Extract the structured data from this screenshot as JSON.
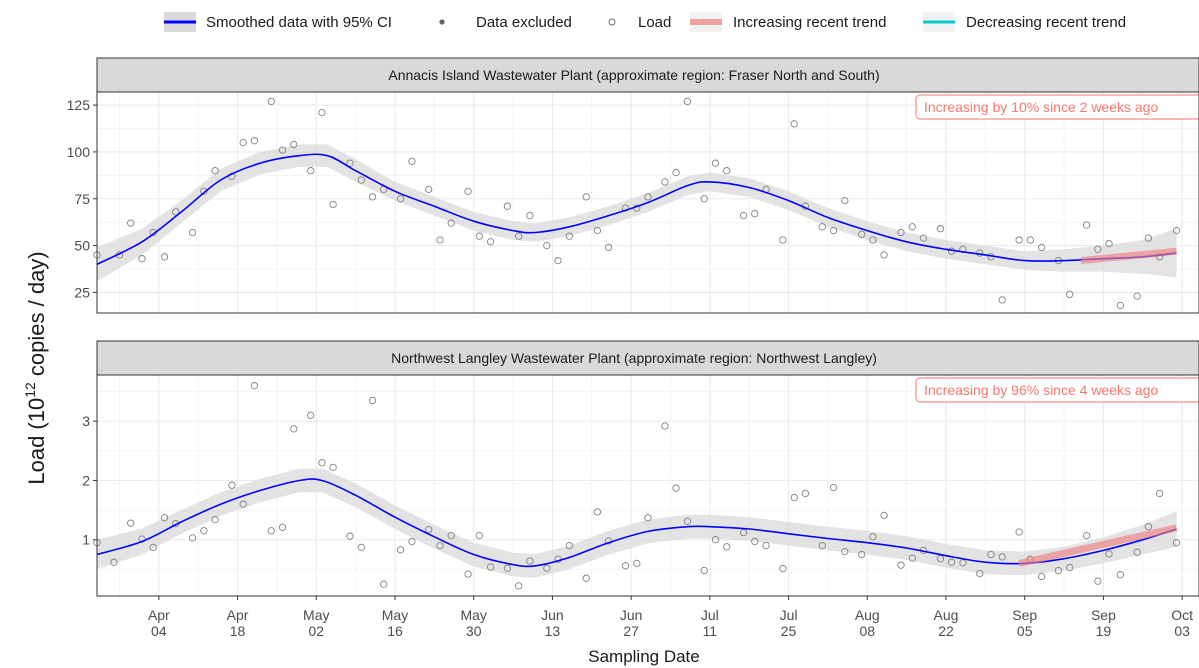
{
  "chart_data": {
    "type": "scatter",
    "x_axis_title": "Sampling Date",
    "y_axis_title_prefix": "Load (10",
    "y_axis_title_exponent": "12",
    "y_axis_title_suffix": " copies / day)",
    "legend": {
      "position": "top",
      "items": [
        {
          "key": "smooth",
          "label": "Smoothed data with 95% CI"
        },
        {
          "key": "excluded",
          "label": "Data excluded"
        },
        {
          "key": "load",
          "label": "Load"
        },
        {
          "key": "increasing",
          "label": "Increasing recent trend"
        },
        {
          "key": "decreasing",
          "label": "Decreasing recent trend"
        }
      ]
    },
    "x_ticks": [
      {
        "date": "2021-04-04",
        "month": "Apr",
        "day": "04"
      },
      {
        "date": "2021-04-18",
        "month": "Apr",
        "day": "18"
      },
      {
        "date": "2021-05-02",
        "month": "May",
        "day": "02"
      },
      {
        "date": "2021-05-16",
        "month": "May",
        "day": "16"
      },
      {
        "date": "2021-05-30",
        "month": "May",
        "day": "30"
      },
      {
        "date": "2021-06-13",
        "month": "Jun",
        "day": "13"
      },
      {
        "date": "2021-06-27",
        "month": "Jun",
        "day": "27"
      },
      {
        "date": "2021-07-11",
        "month": "Jul",
        "day": "11"
      },
      {
        "date": "2021-07-25",
        "month": "Jul",
        "day": "25"
      },
      {
        "date": "2021-08-08",
        "month": "Aug",
        "day": "08"
      },
      {
        "date": "2021-08-22",
        "month": "Aug",
        "day": "22"
      },
      {
        "date": "2021-09-05",
        "month": "Sep",
        "day": "05"
      },
      {
        "date": "2021-09-19",
        "month": "Sep",
        "day": "19"
      },
      {
        "date": "2021-10-03",
        "month": "Oct",
        "day": "03"
      }
    ],
    "x_range": [
      "2021-03-24",
      "2021-10-06"
    ],
    "colors": {
      "smooth": "#0000ff",
      "ci": "#d9d9d9",
      "increasing": "#f08080",
      "decreasing": "#00cccc",
      "annotation": "#f8766d",
      "points": "#808080",
      "strip_fill": "#d9d9d9"
    },
    "grid": true,
    "panels": [
      {
        "title": "Annacis Island Wastewater Plant (approximate region: Fraser North and South)",
        "annotation": "Increasing by 10% since 2 weeks ago",
        "ylim": [
          14,
          132
        ],
        "y_ticks": [
          25,
          50,
          75,
          100,
          125
        ],
        "points": [
          [
            "2021-03-24",
            45
          ],
          [
            "2021-03-28",
            45
          ],
          [
            "2021-03-30",
            62
          ],
          [
            "2021-04-01",
            43
          ],
          [
            "2021-04-03",
            57
          ],
          [
            "2021-04-05",
            44
          ],
          [
            "2021-04-07",
            68
          ],
          [
            "2021-04-10",
            57
          ],
          [
            "2021-04-12",
            79
          ],
          [
            "2021-04-14",
            90
          ],
          [
            "2021-04-17",
            87
          ],
          [
            "2021-04-19",
            105
          ],
          [
            "2021-04-21",
            106
          ],
          [
            "2021-04-24",
            127
          ],
          [
            "2021-04-26",
            101
          ],
          [
            "2021-04-28",
            104
          ],
          [
            "2021-05-01",
            90
          ],
          [
            "2021-05-03",
            121
          ],
          [
            "2021-05-05",
            72
          ],
          [
            "2021-05-08",
            94
          ],
          [
            "2021-05-10",
            85
          ],
          [
            "2021-05-12",
            76
          ],
          [
            "2021-05-14",
            80
          ],
          [
            "2021-05-17",
            75
          ],
          [
            "2021-05-19",
            95
          ],
          [
            "2021-05-22",
            80
          ],
          [
            "2021-05-24",
            53
          ],
          [
            "2021-05-26",
            62
          ],
          [
            "2021-05-29",
            79
          ],
          [
            "2021-05-31",
            55
          ],
          [
            "2021-06-02",
            52
          ],
          [
            "2021-06-05",
            71
          ],
          [
            "2021-06-07",
            55
          ],
          [
            "2021-06-09",
            66
          ],
          [
            "2021-06-12",
            50
          ],
          [
            "2021-06-14",
            42
          ],
          [
            "2021-06-16",
            55
          ],
          [
            "2021-06-19",
            76
          ],
          [
            "2021-06-21",
            58
          ],
          [
            "2021-06-23",
            49
          ],
          [
            "2021-06-26",
            70
          ],
          [
            "2021-06-28",
            70
          ],
          [
            "2021-06-30",
            76
          ],
          [
            "2021-07-03",
            84
          ],
          [
            "2021-07-05",
            89
          ],
          [
            "2021-07-07",
            127
          ],
          [
            "2021-07-10",
            75
          ],
          [
            "2021-07-12",
            94
          ],
          [
            "2021-07-14",
            90
          ],
          [
            "2021-07-17",
            66
          ],
          [
            "2021-07-19",
            67
          ],
          [
            "2021-07-21",
            80
          ],
          [
            "2021-07-24",
            53
          ],
          [
            "2021-07-26",
            115
          ],
          [
            "2021-07-28",
            71
          ],
          [
            "2021-07-31",
            60
          ],
          [
            "2021-08-02",
            58
          ],
          [
            "2021-08-04",
            74
          ],
          [
            "2021-08-07",
            56
          ],
          [
            "2021-08-09",
            53
          ],
          [
            "2021-08-11",
            45
          ],
          [
            "2021-08-14",
            57
          ],
          [
            "2021-08-16",
            60
          ],
          [
            "2021-08-18",
            54
          ],
          [
            "2021-08-21",
            59
          ],
          [
            "2021-08-23",
            47
          ],
          [
            "2021-08-25",
            48
          ],
          [
            "2021-08-28",
            46
          ],
          [
            "2021-08-30",
            44
          ],
          [
            "2021-09-01",
            21
          ],
          [
            "2021-09-04",
            53
          ],
          [
            "2021-09-06",
            53
          ],
          [
            "2021-09-08",
            49
          ],
          [
            "2021-09-11",
            42
          ],
          [
            "2021-09-13",
            24
          ],
          [
            "2021-09-16",
            61
          ],
          [
            "2021-09-18",
            48
          ],
          [
            "2021-09-20",
            51
          ],
          [
            "2021-09-22",
            18
          ],
          [
            "2021-09-25",
            23
          ],
          [
            "2021-09-27",
            54
          ],
          [
            "2021-09-29",
            44
          ],
          [
            "2021-10-02",
            58
          ]
        ],
        "smooth": [
          [
            "2021-03-24",
            40
          ],
          [
            "2021-04-01",
            52
          ],
          [
            "2021-04-08",
            68
          ],
          [
            "2021-04-15",
            85
          ],
          [
            "2021-04-22",
            94
          ],
          [
            "2021-04-29",
            98
          ],
          [
            "2021-05-04",
            98
          ],
          [
            "2021-05-09",
            90
          ],
          [
            "2021-05-16",
            79
          ],
          [
            "2021-05-23",
            71
          ],
          [
            "2021-05-30",
            63
          ],
          [
            "2021-06-06",
            58
          ],
          [
            "2021-06-10",
            57
          ],
          [
            "2021-06-16",
            60
          ],
          [
            "2021-06-23",
            66
          ],
          [
            "2021-06-30",
            73
          ],
          [
            "2021-07-07",
            82
          ],
          [
            "2021-07-11",
            84
          ],
          [
            "2021-07-18",
            81
          ],
          [
            "2021-07-25",
            74
          ],
          [
            "2021-08-01",
            65
          ],
          [
            "2021-08-08",
            58
          ],
          [
            "2021-08-15",
            52
          ],
          [
            "2021-08-22",
            48
          ],
          [
            "2021-08-29",
            45
          ],
          [
            "2021-09-05",
            42
          ],
          [
            "2021-09-12",
            42
          ],
          [
            "2021-09-19",
            43
          ],
          [
            "2021-09-26",
            44
          ],
          [
            "2021-10-02",
            46
          ]
        ],
        "ci_halfwidth": [
          9,
          7,
          6,
          6,
          6,
          6,
          6,
          6,
          5,
          5,
          5,
          5,
          5,
          5,
          5,
          5,
          5,
          5,
          5,
          5,
          5,
          5,
          5,
          5,
          5,
          5,
          6,
          7,
          9,
          13
        ],
        "trend": {
          "direction": "increasing",
          "start": [
            "2021-09-15",
            42
          ],
          "end": [
            "2021-10-02",
            47
          ]
        }
      },
      {
        "title": "Northwest Langley Wastewater Plant (approximate region: Northwest Langley)",
        "annotation": "Increasing by 96% since 4 weeks ago",
        "ylim": [
          0.05,
          3.78
        ],
        "y_ticks": [
          1,
          2,
          3
        ],
        "points": [
          [
            "2021-03-24",
            0.95
          ],
          [
            "2021-03-27",
            0.62
          ],
          [
            "2021-03-30",
            1.28
          ],
          [
            "2021-04-01",
            1.01
          ],
          [
            "2021-04-03",
            0.87
          ],
          [
            "2021-04-05",
            1.37
          ],
          [
            "2021-04-07",
            1.27
          ],
          [
            "2021-04-10",
            1.03
          ],
          [
            "2021-04-12",
            1.15
          ],
          [
            "2021-04-14",
            1.34
          ],
          [
            "2021-04-17",
            1.92
          ],
          [
            "2021-04-19",
            1.6
          ],
          [
            "2021-04-21",
            3.6
          ],
          [
            "2021-04-24",
            1.15
          ],
          [
            "2021-04-26",
            1.21
          ],
          [
            "2021-04-28",
            2.87
          ],
          [
            "2021-05-01",
            3.1
          ],
          [
            "2021-05-03",
            2.3
          ],
          [
            "2021-05-05",
            2.22
          ],
          [
            "2021-05-08",
            1.06
          ],
          [
            "2021-05-10",
            0.87
          ],
          [
            "2021-05-12",
            3.35
          ],
          [
            "2021-05-14",
            0.25
          ],
          [
            "2021-05-17",
            0.83
          ],
          [
            "2021-05-19",
            0.97
          ],
          [
            "2021-05-22",
            1.17
          ],
          [
            "2021-05-24",
            0.9
          ],
          [
            "2021-05-26",
            1.07
          ],
          [
            "2021-05-29",
            0.42
          ],
          [
            "2021-05-31",
            1.07
          ],
          [
            "2021-06-02",
            0.54
          ],
          [
            "2021-06-05",
            0.52
          ],
          [
            "2021-06-07",
            0.22
          ],
          [
            "2021-06-09",
            0.64
          ],
          [
            "2021-06-12",
            0.52
          ],
          [
            "2021-06-14",
            0.67
          ],
          [
            "2021-06-16",
            0.9
          ],
          [
            "2021-06-19",
            0.35
          ],
          [
            "2021-06-21",
            1.47
          ],
          [
            "2021-06-23",
            0.98
          ],
          [
            "2021-06-26",
            0.56
          ],
          [
            "2021-06-28",
            0.6
          ],
          [
            "2021-06-30",
            1.37
          ],
          [
            "2021-07-03",
            2.92
          ],
          [
            "2021-07-05",
            1.87
          ],
          [
            "2021-07-07",
            1.31
          ],
          [
            "2021-07-10",
            0.48
          ],
          [
            "2021-07-12",
            1.0
          ],
          [
            "2021-07-14",
            0.88
          ],
          [
            "2021-07-17",
            1.12
          ],
          [
            "2021-07-19",
            0.97
          ],
          [
            "2021-07-21",
            0.9
          ],
          [
            "2021-07-24",
            0.51
          ],
          [
            "2021-07-26",
            1.71
          ],
          [
            "2021-07-28",
            1.78
          ],
          [
            "2021-07-31",
            0.9
          ],
          [
            "2021-08-02",
            1.88
          ],
          [
            "2021-08-04",
            0.8
          ],
          [
            "2021-08-07",
            0.75
          ],
          [
            "2021-08-09",
            1.05
          ],
          [
            "2021-08-11",
            1.41
          ],
          [
            "2021-08-14",
            0.57
          ],
          [
            "2021-08-16",
            0.69
          ],
          [
            "2021-08-18",
            0.82
          ],
          [
            "2021-08-21",
            0.68
          ],
          [
            "2021-08-23",
            0.62
          ],
          [
            "2021-08-25",
            0.61
          ],
          [
            "2021-08-28",
            0.43
          ],
          [
            "2021-08-30",
            0.75
          ],
          [
            "2021-09-01",
            0.71
          ],
          [
            "2021-09-04",
            1.13
          ],
          [
            "2021-09-06",
            0.67
          ],
          [
            "2021-09-08",
            0.38
          ],
          [
            "2021-09-11",
            0.48
          ],
          [
            "2021-09-13",
            0.53
          ],
          [
            "2021-09-16",
            1.07
          ],
          [
            "2021-09-18",
            0.3
          ],
          [
            "2021-09-20",
            0.76
          ],
          [
            "2021-09-22",
            0.41
          ],
          [
            "2021-09-25",
            0.79
          ],
          [
            "2021-09-27",
            1.22
          ],
          [
            "2021-09-29",
            1.78
          ],
          [
            "2021-10-02",
            0.95
          ]
        ],
        "smooth": [
          [
            "2021-03-24",
            0.75
          ],
          [
            "2021-04-01",
            0.97
          ],
          [
            "2021-04-08",
            1.3
          ],
          [
            "2021-04-15",
            1.6
          ],
          [
            "2021-04-22",
            1.83
          ],
          [
            "2021-04-29",
            2.0
          ],
          [
            "2021-05-03",
            2.0
          ],
          [
            "2021-05-09",
            1.75
          ],
          [
            "2021-05-16",
            1.38
          ],
          [
            "2021-05-23",
            1.05
          ],
          [
            "2021-05-30",
            0.75
          ],
          [
            "2021-06-06",
            0.58
          ],
          [
            "2021-06-10",
            0.56
          ],
          [
            "2021-06-16",
            0.7
          ],
          [
            "2021-06-23",
            0.95
          ],
          [
            "2021-06-30",
            1.14
          ],
          [
            "2021-07-07",
            1.22
          ],
          [
            "2021-07-11",
            1.22
          ],
          [
            "2021-07-18",
            1.18
          ],
          [
            "2021-07-25",
            1.1
          ],
          [
            "2021-08-01",
            1.02
          ],
          [
            "2021-08-08",
            0.95
          ],
          [
            "2021-08-15",
            0.86
          ],
          [
            "2021-08-22",
            0.73
          ],
          [
            "2021-08-29",
            0.62
          ],
          [
            "2021-09-05",
            0.6
          ],
          [
            "2021-09-12",
            0.68
          ],
          [
            "2021-09-19",
            0.82
          ],
          [
            "2021-09-26",
            1.0
          ],
          [
            "2021-10-02",
            1.18
          ]
        ],
        "ci_halfwidth": [
          0.25,
          0.22,
          0.2,
          0.2,
          0.2,
          0.2,
          0.2,
          0.2,
          0.2,
          0.2,
          0.2,
          0.2,
          0.2,
          0.2,
          0.2,
          0.2,
          0.2,
          0.2,
          0.2,
          0.2,
          0.2,
          0.2,
          0.2,
          0.2,
          0.2,
          0.2,
          0.2,
          0.22,
          0.25,
          0.3
        ],
        "trend": {
          "direction": "increasing",
          "start": [
            "2021-09-04",
            0.6
          ],
          "end": [
            "2021-10-02",
            1.2
          ]
        }
      }
    ]
  }
}
